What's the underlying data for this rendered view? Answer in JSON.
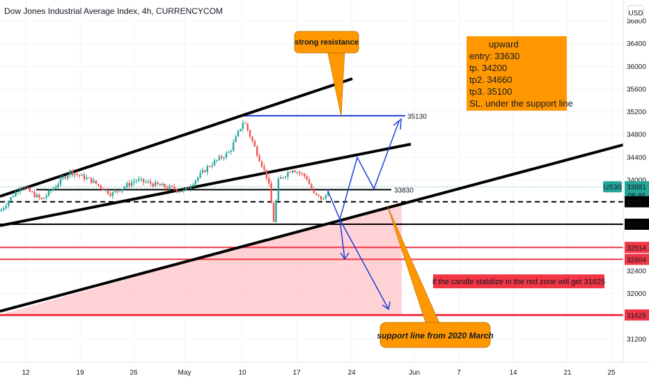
{
  "header": {
    "title": "Dow Jones Industrial Average Index, 4h, CURRENCYCOM"
  },
  "currency_button": {
    "label": "USD"
  },
  "colors": {
    "up": "#26a69a",
    "down": "#ef5350",
    "red_line": "#f23645",
    "blue": "#1e3fd8",
    "callout": "#ff9800",
    "grid": "#f0f3fa",
    "zone": "#ffcdd2"
  },
  "chart_data": {
    "type": "candlestick",
    "title": "Dow Jones Industrial Average Index, 4h, CURRENCYCOM",
    "ylim": [
      30800,
      36900
    ],
    "y_ticks": [
      "36800",
      "36400",
      "36000",
      "35600",
      "35200",
      "34800",
      "34400",
      "34000",
      "33600",
      "33200",
      "32800",
      "32400",
      "32000",
      "31600",
      "31200"
    ],
    "x_ticks": [
      "12",
      "19",
      "26",
      "May",
      "10",
      "17",
      "24",
      "Jun",
      "7",
      "14",
      "21",
      "25"
    ],
    "candles": [],
    "price_labels": {
      "last": {
        "symbol": "US30",
        "value": "33881",
        "countdown": "08:46",
        "price": 33881
      },
      "levels": [
        {
          "text": "33617",
          "price": 33617,
          "style": "black"
        },
        {
          "text": "33222",
          "price": 33222,
          "style": "black"
        },
        {
          "text": "32814",
          "price": 32814,
          "style": "red"
        },
        {
          "text": "32604",
          "price": 32604,
          "style": "red"
        },
        {
          "text": "31625",
          "price": 31625,
          "style": "red"
        }
      ]
    },
    "line_labels": [
      {
        "text": "35130",
        "price": 35130
      },
      {
        "text": "33830",
        "price": 33830
      }
    ],
    "annotations": {
      "strong_resistance": "strong resistance",
      "plan": [
        "upward",
        "entry: 33630",
        "tp.  34200",
        "tp2. 34660",
        "tp3. 35100",
        "SL. under the support line"
      ],
      "red_zone_note": "if the candle stabilize in the red zone will get 31625",
      "support_note": "support line from 2020 March"
    }
  }
}
